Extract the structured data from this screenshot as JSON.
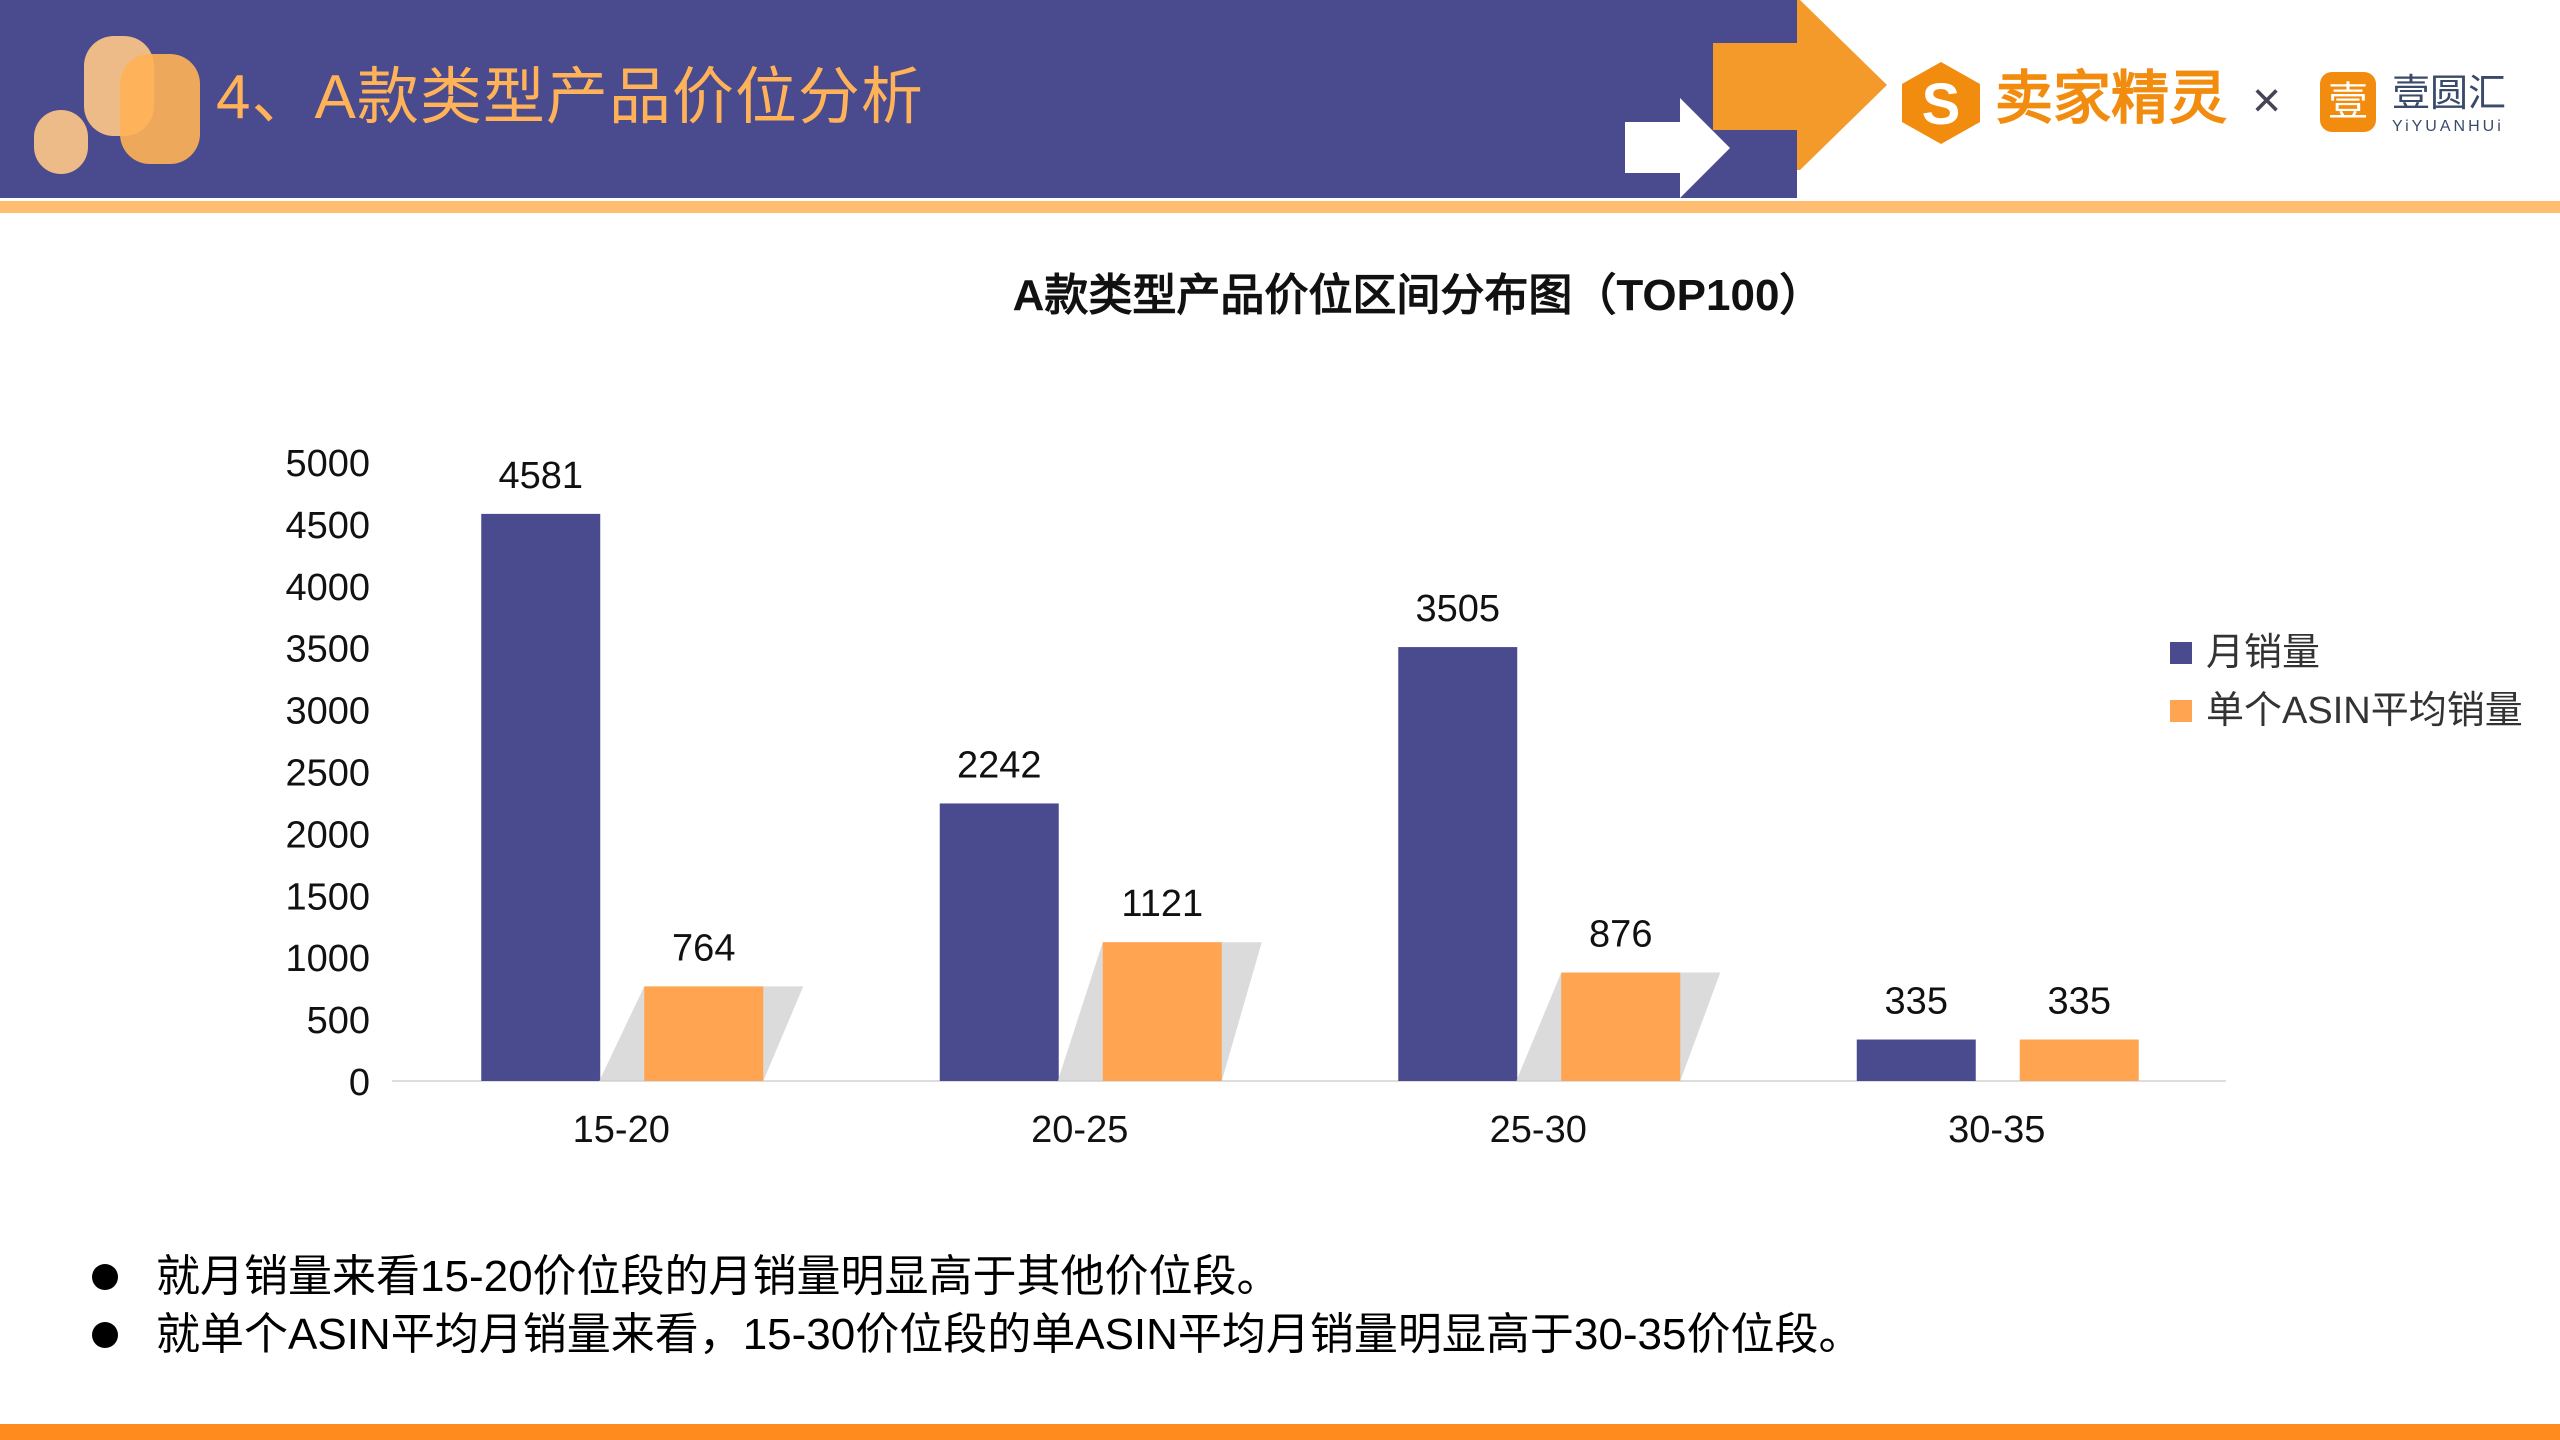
{
  "header": {
    "title": "4、A款类型产品价位分析",
    "logo_main": "卖家精灵",
    "times": "×",
    "logo_partner": "壹圆汇",
    "logo_partner_icon": "壹",
    "logo_partner_sub": "YiYUANHUi"
  },
  "colors": {
    "header_bg": "#4A4A8E",
    "accent": "#F39A2A",
    "series1": "#4A4A8E",
    "series2": "#FFA552"
  },
  "chart_data": {
    "type": "bar",
    "title": "A款类型产品价位区间分布图（TOP100）",
    "categories": [
      "15-20",
      "20-25",
      "25-30",
      "30-35"
    ],
    "series": [
      {
        "name": "月销量",
        "values": [
          4581,
          2242,
          3505,
          335
        ]
      },
      {
        "name": "单个ASIN平均销量",
        "values": [
          764,
          1121,
          876,
          335
        ]
      }
    ],
    "ylim": [
      0,
      5000
    ],
    "yticks": [
      "0",
      "500",
      "1000",
      "1500",
      "2000",
      "2500",
      "3000",
      "3500",
      "4000",
      "4500",
      "5000"
    ],
    "grid": false,
    "legend": "right"
  },
  "notes": [
    "就月销量来看15-20价位段的月销量明显高于其他价位段。",
    "就单个ASIN平均月销量来看，15-30价位段的单ASIN平均月销量明显高于30-35价位段。"
  ]
}
